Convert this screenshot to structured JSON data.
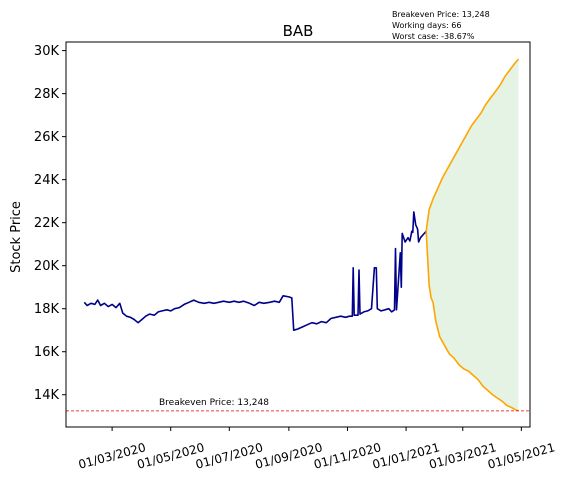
{
  "chart_data": {
    "type": "line",
    "title": "BAB",
    "xlabel": "",
    "ylabel": "Stock Price",
    "x_tick_labels": [
      "01/03/2020",
      "01/05/2020",
      "01/07/2020",
      "01/09/2020",
      "01/11/2020",
      "01/01/2021",
      "01/03/2021",
      "01/05/2021"
    ],
    "y_tick_labels": [
      "14K",
      "16K",
      "18K",
      "20K",
      "22K",
      "24K",
      "26K",
      "28K",
      "30K"
    ],
    "y_ticks": [
      14000,
      16000,
      18000,
      20000,
      22000,
      24000,
      26000,
      28000,
      30000
    ],
    "xlim": [
      "2020-01-13",
      "2021-05-10"
    ],
    "ylim": [
      12500,
      30400
    ],
    "grid": false,
    "info_lines": [
      "Breakeven Price: 13,248",
      "Working days: 66",
      "Worst case: -38.67%"
    ],
    "breakeven": {
      "label": "Breakeven Price: 13,248",
      "value": 13248
    },
    "series": [
      {
        "color": "#00008b",
        "points": [
          [
            "2020-02-01",
            18300
          ],
          [
            "2020-02-04",
            18150
          ],
          [
            "2020-02-08",
            18250
          ],
          [
            "2020-02-12",
            18200
          ],
          [
            "2020-02-15",
            18400
          ],
          [
            "2020-02-18",
            18150
          ],
          [
            "2020-02-22",
            18250
          ],
          [
            "2020-02-26",
            18100
          ],
          [
            "2020-03-01",
            18200
          ],
          [
            "2020-03-05",
            18050
          ],
          [
            "2020-03-09",
            18250
          ],
          [
            "2020-03-12",
            17800
          ],
          [
            "2020-03-16",
            17650
          ],
          [
            "2020-03-20",
            17600
          ],
          [
            "2020-03-24",
            17500
          ],
          [
            "2020-03-28",
            17350
          ],
          [
            "2020-04-01",
            17500
          ],
          [
            "2020-04-05",
            17650
          ],
          [
            "2020-04-09",
            17750
          ],
          [
            "2020-04-14",
            17700
          ],
          [
            "2020-04-18",
            17850
          ],
          [
            "2020-04-22",
            17900
          ],
          [
            "2020-04-27",
            17950
          ],
          [
            "2020-05-01",
            17900
          ],
          [
            "2020-05-05",
            18000
          ],
          [
            "2020-05-10",
            18050
          ],
          [
            "2020-05-15",
            18200
          ],
          [
            "2020-05-20",
            18300
          ],
          [
            "2020-05-25",
            18400
          ],
          [
            "2020-05-30",
            18300
          ],
          [
            "2020-06-05",
            18250
          ],
          [
            "2020-06-10",
            18300
          ],
          [
            "2020-06-15",
            18250
          ],
          [
            "2020-06-20",
            18300
          ],
          [
            "2020-06-25",
            18350
          ],
          [
            "2020-07-01",
            18300
          ],
          [
            "2020-07-06",
            18350
          ],
          [
            "2020-07-11",
            18300
          ],
          [
            "2020-07-16",
            18350
          ],
          [
            "2020-07-22",
            18250
          ],
          [
            "2020-07-27",
            18150
          ],
          [
            "2020-08-01",
            18300
          ],
          [
            "2020-08-06",
            18250
          ],
          [
            "2020-08-12",
            18300
          ],
          [
            "2020-08-17",
            18350
          ],
          [
            "2020-08-22",
            18300
          ],
          [
            "2020-08-26",
            18600
          ],
          [
            "2020-09-01",
            18550
          ],
          [
            "2020-09-04",
            18500
          ],
          [
            "2020-09-06",
            17000
          ],
          [
            "2020-09-10",
            17050
          ],
          [
            "2020-09-15",
            17150
          ],
          [
            "2020-09-20",
            17250
          ],
          [
            "2020-09-25",
            17350
          ],
          [
            "2020-09-30",
            17300
          ],
          [
            "2020-10-05",
            17400
          ],
          [
            "2020-10-10",
            17350
          ],
          [
            "2020-10-15",
            17550
          ],
          [
            "2020-10-20",
            17600
          ],
          [
            "2020-10-25",
            17650
          ],
          [
            "2020-10-30",
            17600
          ],
          [
            "2020-11-03",
            17650
          ],
          [
            "2020-11-06",
            17650
          ],
          [
            "2020-11-07",
            19900
          ],
          [
            "2020-11-08",
            17700
          ],
          [
            "2020-11-12",
            17700
          ],
          [
            "2020-11-13",
            19800
          ],
          [
            "2020-11-14",
            17750
          ],
          [
            "2020-11-18",
            17850
          ],
          [
            "2020-11-22",
            17900
          ],
          [
            "2020-11-26",
            18000
          ],
          [
            "2020-11-29",
            19900
          ],
          [
            "2020-12-01",
            19900
          ],
          [
            "2020-12-02",
            18000
          ],
          [
            "2020-12-06",
            17900
          ],
          [
            "2020-12-10",
            17950
          ],
          [
            "2020-12-14",
            18000
          ],
          [
            "2020-12-17",
            17850
          ],
          [
            "2020-12-20",
            17950
          ],
          [
            "2020-12-21",
            20800
          ],
          [
            "2020-12-22",
            17950
          ],
          [
            "2020-12-26",
            20600
          ],
          [
            "2020-12-27",
            19000
          ],
          [
            "2020-12-28",
            21500
          ],
          [
            "2020-12-31",
            21100
          ],
          [
            "2021-01-03",
            21300
          ],
          [
            "2021-01-05",
            21150
          ],
          [
            "2021-01-07",
            21600
          ],
          [
            "2021-01-08",
            21550
          ],
          [
            "2021-01-09",
            22500
          ],
          [
            "2021-01-11",
            21900
          ],
          [
            "2021-01-13",
            21700
          ],
          [
            "2021-01-14",
            21100
          ],
          [
            "2021-01-16",
            21300
          ],
          [
            "2021-01-20",
            21500
          ],
          [
            "2021-01-22",
            21600
          ]
        ]
      },
      {
        "color": "#ffa500",
        "points": [
          [
            "2021-01-22",
            21600
          ],
          [
            "2021-01-25",
            22600
          ],
          [
            "2021-01-29",
            23100
          ],
          [
            "2021-02-03",
            23600
          ],
          [
            "2021-02-08",
            24100
          ],
          [
            "2021-02-13",
            24500
          ],
          [
            "2021-02-18",
            24900
          ],
          [
            "2021-02-23",
            25300
          ],
          [
            "2021-02-28",
            25700
          ],
          [
            "2021-03-05",
            26100
          ],
          [
            "2021-03-10",
            26500
          ],
          [
            "2021-03-15",
            26800
          ],
          [
            "2021-03-20",
            27100
          ],
          [
            "2021-03-25",
            27500
          ],
          [
            "2021-03-30",
            27800
          ],
          [
            "2021-04-04",
            28100
          ],
          [
            "2021-04-09",
            28400
          ],
          [
            "2021-04-14",
            28800
          ],
          [
            "2021-04-19",
            29100
          ],
          [
            "2021-04-24",
            29400
          ],
          [
            "2021-04-28",
            29600
          ]
        ]
      },
      {
        "color": "#ffa500",
        "points": [
          [
            "2021-01-22",
            21600
          ],
          [
            "2021-01-25",
            19100
          ],
          [
            "2021-01-27",
            18500
          ],
          [
            "2021-01-29",
            18300
          ],
          [
            "2021-02-01",
            17400
          ],
          [
            "2021-02-05",
            16700
          ],
          [
            "2021-02-10",
            16300
          ],
          [
            "2021-02-15",
            15900
          ],
          [
            "2021-02-20",
            15700
          ],
          [
            "2021-02-25",
            15400
          ],
          [
            "2021-03-02",
            15200
          ],
          [
            "2021-03-07",
            15100
          ],
          [
            "2021-03-12",
            14900
          ],
          [
            "2021-03-17",
            14700
          ],
          [
            "2021-03-22",
            14400
          ],
          [
            "2021-03-27",
            14200
          ],
          [
            "2021-04-01",
            14000
          ],
          [
            "2021-04-06",
            13850
          ],
          [
            "2021-04-11",
            13700
          ],
          [
            "2021-04-16",
            13500
          ],
          [
            "2021-04-21",
            13400
          ],
          [
            "2021-04-25",
            13300
          ],
          [
            "2021-04-28",
            13250
          ]
        ]
      }
    ]
  }
}
